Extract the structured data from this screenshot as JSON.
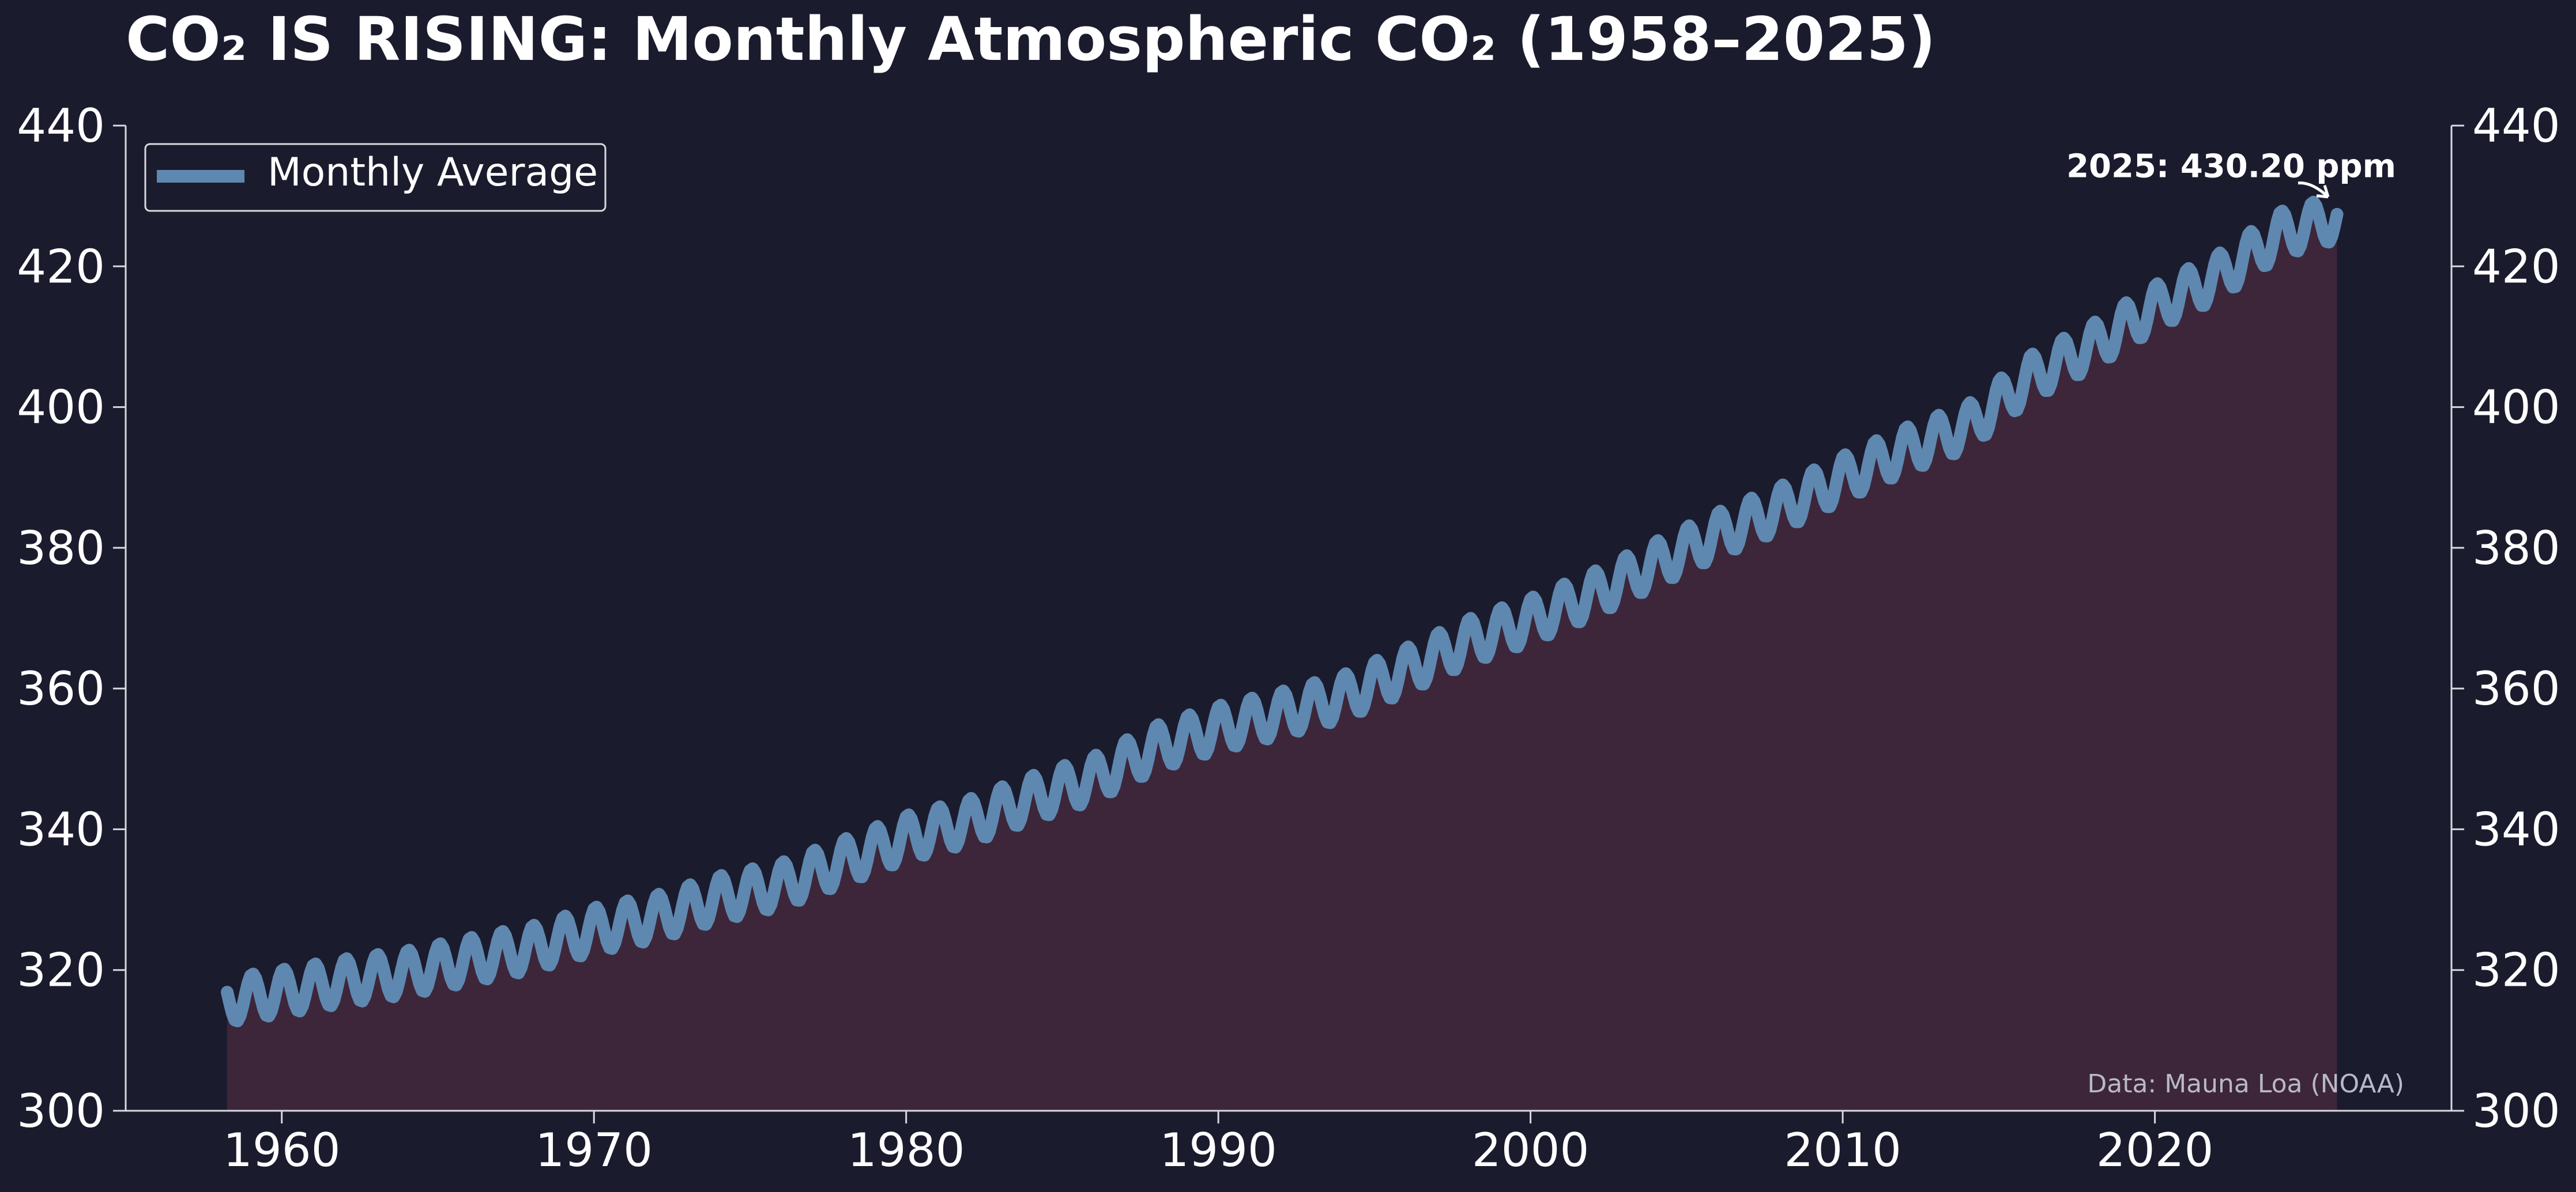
{
  "colors": {
    "background": "#1b1b2e",
    "line": "#5f88b0",
    "fill": "#3d2639",
    "axis": "#d8d8e0",
    "text": "#ffffff",
    "source_text": "#b8b8c8"
  },
  "chart_data": {
    "type": "line",
    "title": "CO₂ IS RISING: Monthly Atmospheric CO₂ (1958–2025)",
    "xlabel": "",
    "ylabel": "",
    "xlim": [
      1955,
      2029.5
    ],
    "ylim": [
      300,
      440
    ],
    "x_ticks": [
      1960,
      1970,
      1980,
      1990,
      2000,
      2010,
      2020
    ],
    "y_ticks": [
      300,
      320,
      340,
      360,
      380,
      400,
      420,
      440
    ],
    "y_axis_both_sides": true,
    "grid": false,
    "area_fill_below": true,
    "legend": {
      "position": "top-left",
      "entries": [
        "Monthly Average"
      ]
    },
    "series": [
      {
        "name": "Monthly Average",
        "x": [
          1958.25,
          1960,
          1962,
          1964,
          1966,
          1968,
          1970,
          1972,
          1974,
          1976,
          1978,
          1980,
          1982,
          1984,
          1986,
          1988,
          1990,
          1992,
          1994,
          1996,
          1998,
          2000,
          2002,
          2004,
          2006,
          2008,
          2010,
          2012,
          2014,
          2016,
          2018,
          2020,
          2022,
          2024,
          2025.9
        ],
        "y": [
          315.7,
          316.9,
          318.4,
          319.6,
          321.4,
          323.1,
          325.7,
          327.5,
          330.2,
          332.1,
          335.4,
          338.8,
          341.1,
          344.4,
          347.2,
          351.6,
          354.4,
          356.4,
          358.8,
          362.6,
          366.7,
          369.7,
          373.4,
          377.7,
          381.9,
          385.6,
          389.9,
          393.9,
          397.2,
          404.2,
          408.7,
          414.2,
          418.5,
          424.6,
          427.0
        ]
      }
    ],
    "seasonal_amplitude_ppm": 3.2,
    "annotation": {
      "text": "2025: 430.20 ppm",
      "x": 2025.4,
      "y": 430.2
    },
    "source_note": "Data: Mauna Loa (NOAA)"
  }
}
